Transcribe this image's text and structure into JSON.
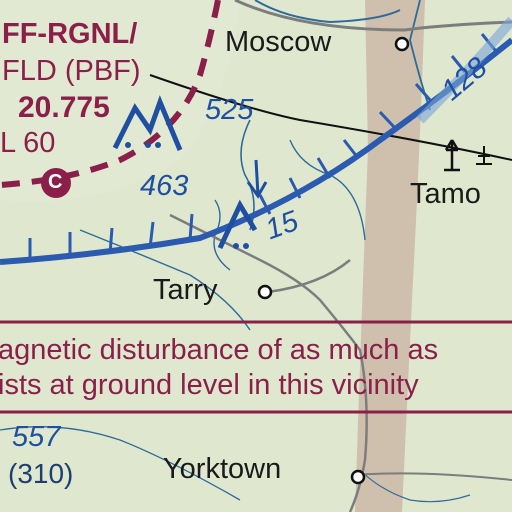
{
  "airport": {
    "name_line": "FF-RGNL/",
    "field_line": "FLD (PBF)",
    "frequency": "20.775",
    "elevation_line": "L 60",
    "ctaf_glyph": "C"
  },
  "towns": [
    {
      "name": "Moscow"
    },
    {
      "name": "Tamo"
    },
    {
      "name": "Tarry"
    },
    {
      "name": "Yorktown"
    }
  ],
  "elevations": {
    "label_525": "525",
    "label_463": "463",
    "label_557": "557",
    "label_310": "(310)"
  },
  "airway": {
    "label_128": "128",
    "label_15": "15"
  },
  "magnetic_note": {
    "line1": "agnetic disturbance of as much as",
    "line2": "ists at ground level in this vicinity"
  },
  "colors": {
    "land": "#dfe8cf",
    "airway_blue": "#2a5bb0",
    "magenta": "#8a1f4a",
    "terrain_band": "#c9b3a3",
    "road": "#7d7d7d",
    "water": "#2f6b9a"
  }
}
